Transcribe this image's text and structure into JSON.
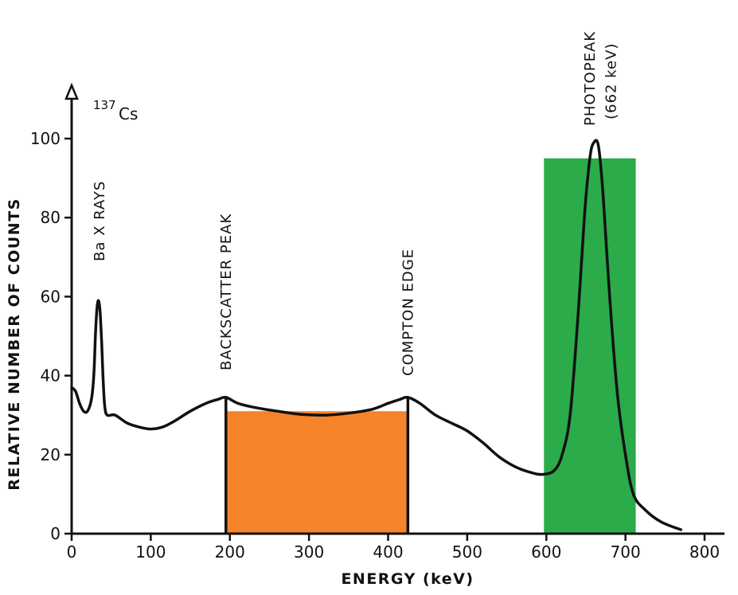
{
  "chart_data": {
    "type": "line",
    "title": {
      "mass_number": "137",
      "element": "Cs"
    },
    "xlabel": "ENERGY (keV)",
    "ylabel": "RELATIVE NUMBER OF COUNTS",
    "xlim": [
      0,
      850
    ],
    "ylim": [
      0,
      100
    ],
    "x_ticks": [
      0,
      100,
      200,
      300,
      400,
      500,
      600,
      700,
      800
    ],
    "y_ticks": [
      0,
      20,
      40,
      60,
      80,
      100
    ],
    "grid": false,
    "series": [
      {
        "color": "#111111",
        "points": [
          [
            0,
            37
          ],
          [
            5,
            36
          ],
          [
            10,
            33
          ],
          [
            15,
            31
          ],
          [
            20,
            31
          ],
          [
            25,
            34
          ],
          [
            28,
            40
          ],
          [
            30,
            50
          ],
          [
            32,
            57
          ],
          [
            34,
            59
          ],
          [
            36,
            56
          ],
          [
            38,
            48
          ],
          [
            40,
            38
          ],
          [
            42,
            32
          ],
          [
            45,
            30
          ],
          [
            55,
            30
          ],
          [
            70,
            28
          ],
          [
            85,
            27
          ],
          [
            100,
            26.5
          ],
          [
            115,
            27
          ],
          [
            130,
            28.5
          ],
          [
            150,
            31
          ],
          [
            170,
            33
          ],
          [
            185,
            34
          ],
          [
            195,
            34.5
          ],
          [
            210,
            33
          ],
          [
            230,
            32
          ],
          [
            260,
            31
          ],
          [
            290,
            30.2
          ],
          [
            320,
            30
          ],
          [
            350,
            30.5
          ],
          [
            380,
            31.5
          ],
          [
            400,
            33
          ],
          [
            415,
            34
          ],
          [
            425,
            34.5
          ],
          [
            440,
            33
          ],
          [
            460,
            30
          ],
          [
            480,
            28
          ],
          [
            500,
            26
          ],
          [
            520,
            23
          ],
          [
            540,
            19.5
          ],
          [
            560,
            17
          ],
          [
            580,
            15.5
          ],
          [
            595,
            15
          ],
          [
            610,
            16
          ],
          [
            620,
            20
          ],
          [
            630,
            30
          ],
          [
            640,
            55
          ],
          [
            648,
            80
          ],
          [
            655,
            95
          ],
          [
            660,
            99
          ],
          [
            666,
            98
          ],
          [
            672,
            85
          ],
          [
            680,
            60
          ],
          [
            690,
            35
          ],
          [
            700,
            20
          ],
          [
            710,
            10
          ],
          [
            725,
            6
          ],
          [
            745,
            3
          ],
          [
            770,
            1
          ]
        ]
      }
    ],
    "shaded_regions": [
      {
        "x": [
          195,
          425
        ],
        "y": [
          0,
          31
        ],
        "color": "#f5832a"
      },
      {
        "x": [
          597,
          713
        ],
        "y": [
          0,
          95
        ],
        "color": "#2bab4a"
      }
    ],
    "vertical_markers": [
      195,
      425
    ],
    "annotations": [
      {
        "text": "Ba X RAYS",
        "x": 35
      },
      {
        "text": "BACKSCATTER PEAK",
        "x": 195
      },
      {
        "text": "COMPTON EDGE",
        "x": 425
      },
      {
        "text": "PHOTOPEAK",
        "x": 655
      },
      {
        "text": "(662 keV)",
        "x": 682
      }
    ]
  }
}
